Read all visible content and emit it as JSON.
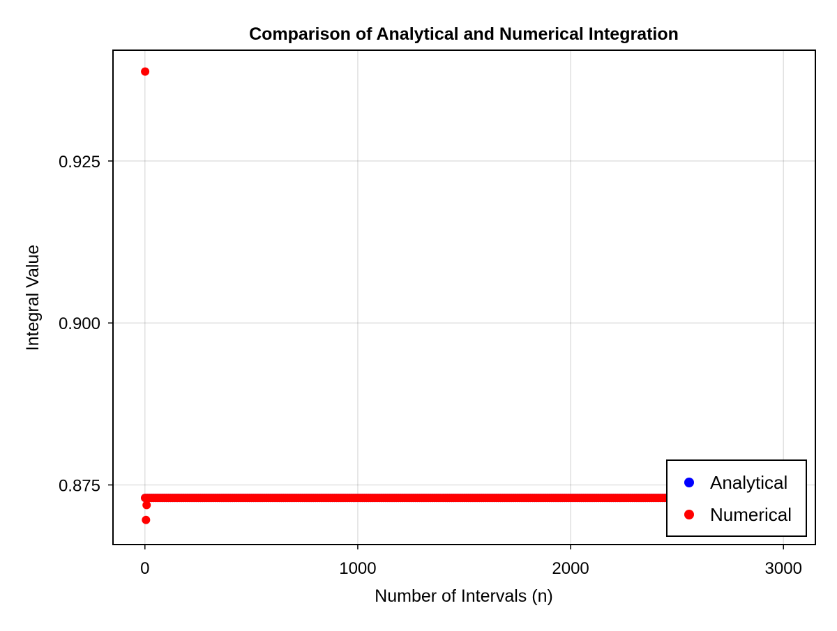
{
  "chart_data": {
    "type": "scatter",
    "title": "Comparison of Analytical and Numerical Integration",
    "xlabel": "Number of Intervals (n)",
    "ylabel": "Integral Value",
    "xlim": [
      -150,
      3150
    ],
    "ylim": [
      0.8658,
      0.9421
    ],
    "xticks": [
      0,
      1000,
      2000,
      3000
    ],
    "xtick_labels": [
      "0",
      "1000",
      "2000",
      "3000"
    ],
    "yticks": [
      0.875,
      0.9,
      0.925
    ],
    "ytick_labels": [
      "0.875",
      "0.900",
      "0.925"
    ],
    "grid": true,
    "legend_position": "bottom-right",
    "series": [
      {
        "name": "Analytical",
        "color": "#0000ff",
        "x_range": [
          1,
          2500
        ],
        "x_step": 10,
        "value": 0.873
      },
      {
        "name": "Numerical",
        "color": "#ff0000",
        "x_range": [
          1,
          2500
        ],
        "x_step": 10,
        "value": 0.873,
        "early_points": [
          {
            "x": 1,
            "y": 0.9388
          },
          {
            "x": 5,
            "y": 0.8696
          },
          {
            "x": 8,
            "y": 0.8719
          }
        ]
      }
    ]
  }
}
